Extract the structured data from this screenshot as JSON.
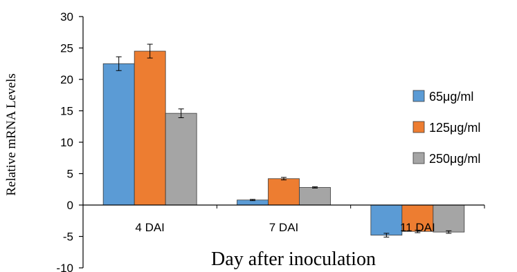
{
  "chart_data": {
    "type": "bar",
    "title": "",
    "xlabel": "Day after inoculation",
    "ylabel": "Relative mRNA Levels",
    "ylim": [
      -10,
      30
    ],
    "yticks": [
      30,
      25,
      20,
      15,
      10,
      5,
      0,
      -5,
      -10
    ],
    "grid": false,
    "legend_position": "right",
    "categories": [
      "4 DAI",
      "7 DAI",
      "11 DAI"
    ],
    "series": [
      {
        "name": "65μg/ml",
        "color": "#5b9bd5",
        "values": [
          22.5,
          0.8,
          -4.8
        ],
        "errors": [
          1.1,
          0.1,
          0.3
        ]
      },
      {
        "name": "125μg/ml",
        "color": "#ed7d31",
        "values": [
          24.5,
          4.2,
          -4.2
        ],
        "errors": [
          1.1,
          0.2,
          0.2
        ]
      },
      {
        "name": "250μg/ml",
        "color": "#a5a5a5",
        "values": [
          14.6,
          2.8,
          -4.3
        ],
        "errors": [
          0.7,
          0.1,
          0.2
        ]
      }
    ]
  }
}
